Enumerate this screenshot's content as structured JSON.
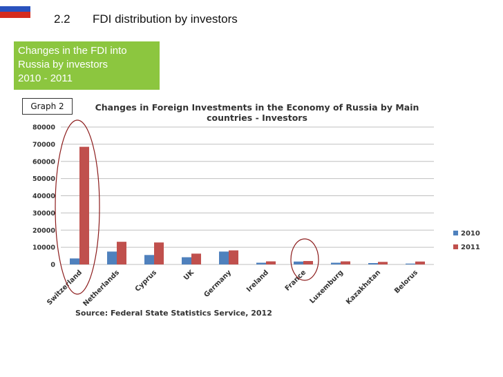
{
  "slide": {
    "number": "2.2",
    "title": "FDI distribution by investors",
    "flag_colors": [
      "#ffffff",
      "#2a52be",
      "#d52b1e"
    ]
  },
  "callout": {
    "lines": [
      "Changes in the FDI into",
      "Russia by investors",
      "2010 - 2011"
    ],
    "color": "#8cc63f"
  },
  "graph_label": "Graph 2",
  "chart_data": {
    "type": "bar",
    "title_lines": [
      "Changes in Foreign Investments in the Economy of Russia by Main",
      "countries - Investors"
    ],
    "categories": [
      "Switzerland",
      "Netherlands",
      "Cyprus",
      "UK",
      "Germany",
      "Ireland",
      "France",
      "Luxemburg",
      "Kazakhstan",
      "Belorus"
    ],
    "series": [
      {
        "name": "2010",
        "color": "#4f81bd",
        "values": [
          3500,
          7500,
          5500,
          4200,
          7500,
          1000,
          1700,
          1000,
          800,
          500
        ]
      },
      {
        "name": "2011",
        "color": "#c0504d",
        "values": [
          68500,
          13200,
          12800,
          6300,
          8200,
          1800,
          2000,
          1800,
          1500,
          1700
        ]
      }
    ],
    "y_ticks": [
      "0",
      "10000",
      "20000",
      "30000",
      "40000",
      "50000",
      "60000",
      "70000",
      "80000"
    ],
    "ylim": [
      0,
      80000
    ],
    "grid": true,
    "legend_position": "right",
    "source": "Source: Federal State Statistics Service, 2012",
    "highlighted_categories": [
      "Switzerland",
      "France"
    ],
    "highlight_color": "#8b1a1a"
  }
}
